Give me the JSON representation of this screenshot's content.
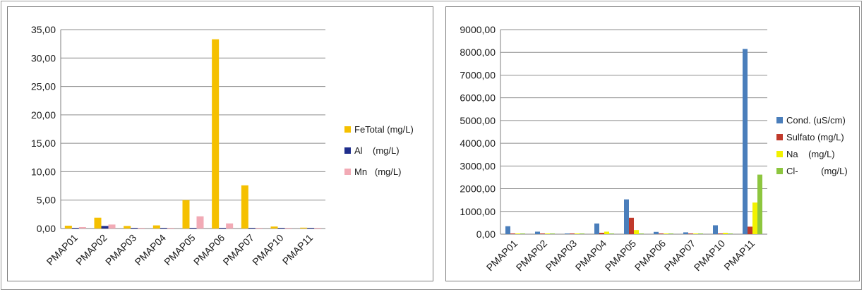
{
  "chart_data": [
    {
      "type": "bar",
      "categories": [
        "PMAP01",
        "PMAP02",
        "PMAP03",
        "PMAP04",
        "PMAP05",
        "PMAP06",
        "PMAP07",
        "PMAP10",
        "PMAP11"
      ],
      "series": [
        {
          "name": "FeTotal (mg/L)",
          "color": "#f5c000",
          "values": [
            0.5,
            1.9,
            0.45,
            0.55,
            5.0,
            33.3,
            7.6,
            0.35,
            0.15
          ]
        },
        {
          "name": "Al    (mg/L)",
          "color": "#1f2e8c",
          "values": [
            0.05,
            0.45,
            0.05,
            0.05,
            0.05,
            0.05,
            0.05,
            0.05,
            0.05
          ]
        },
        {
          "name": "Mn   (mg/L)",
          "color": "#f2aab5",
          "values": [
            0.25,
            0.7,
            0.05,
            0.1,
            2.15,
            0.9,
            0.1,
            0.05,
            0.1
          ]
        }
      ],
      "ylim": [
        0,
        35
      ],
      "yticks": [
        "0,00",
        "5,00",
        "10,00",
        "15,00",
        "20,00",
        "25,00",
        "30,00",
        "35,00"
      ],
      "grid": true,
      "legend_position": "right"
    },
    {
      "type": "bar",
      "categories": [
        "PMAP01",
        "PMAP02",
        "PMAP03",
        "PMAP04",
        "PMAP05",
        "PMAP06",
        "PMAP07",
        "PMAP10",
        "PMAP11"
      ],
      "series": [
        {
          "name": "Cond. (uS/cm)",
          "color": "#4a7ebb",
          "values": [
            350,
            110,
            20,
            470,
            1530,
            100,
            80,
            390,
            8150
          ]
        },
        {
          "name": "Sulfato (mg/L)",
          "color": "#c0392b",
          "values": [
            5,
            5,
            5,
            60,
            720,
            5,
            5,
            5,
            330
          ]
        },
        {
          "name": "Na    (mg/L)",
          "color": "#f2f200",
          "values": [
            10,
            15,
            5,
            110,
            180,
            10,
            10,
            60,
            1390
          ]
        },
        {
          "name": "Cl-         (mg/L)",
          "color": "#8dc63f",
          "values": [
            5,
            5,
            5,
            20,
            20,
            5,
            5,
            20,
            2620
          ]
        }
      ],
      "ylim": [
        0,
        9000
      ],
      "yticks": [
        "0,00",
        "1000,00",
        "2000,00",
        "3000,00",
        "4000,00",
        "5000,00",
        "6000,00",
        "7000,00",
        "8000,00",
        "9000,00"
      ],
      "grid": true,
      "legend_position": "right"
    }
  ]
}
